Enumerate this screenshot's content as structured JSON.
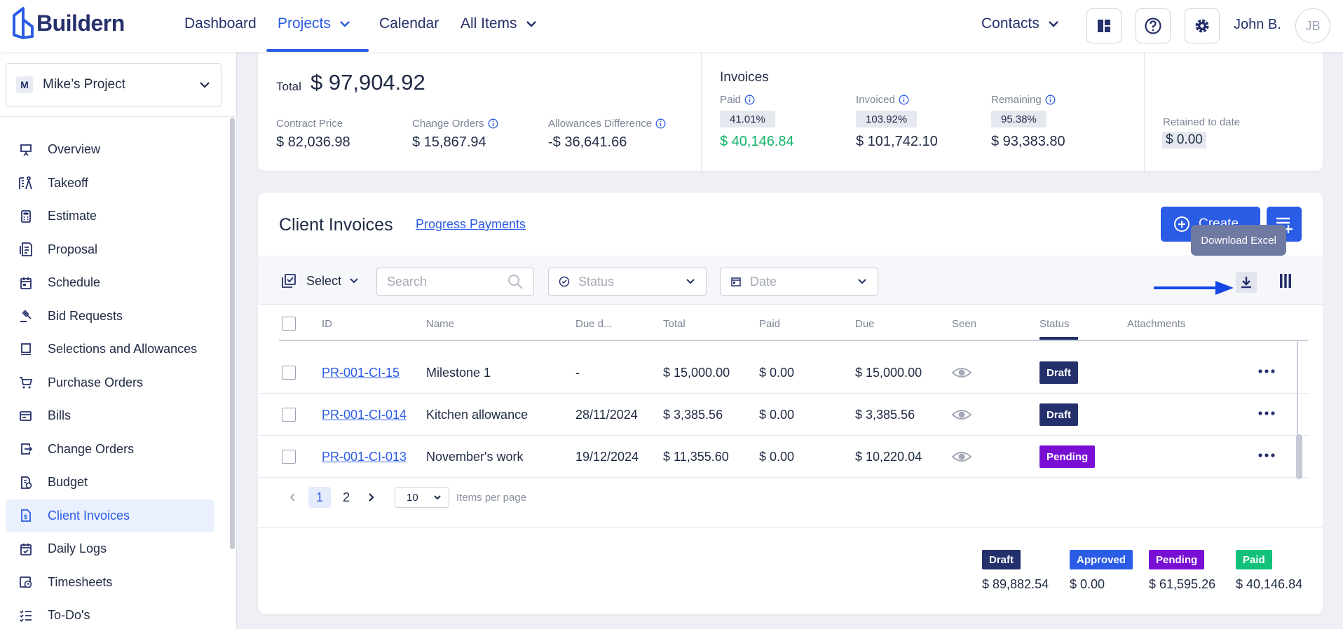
{
  "app": {
    "name": "Buildern"
  },
  "nav": {
    "dashboard": "Dashboard",
    "projects": "Projects",
    "calendar": "Calendar",
    "all_items": "All Items",
    "contacts": "Contacts",
    "user_name": "John B.",
    "user_initials": "JB"
  },
  "sidebar": {
    "project_badge": "M",
    "project_name": "Mike’s Project",
    "items": [
      {
        "label": "Overview",
        "icon": "presentation-icon"
      },
      {
        "label": "Takeoff",
        "icon": "takeoff-icon"
      },
      {
        "label": "Estimate",
        "icon": "calculator-icon"
      },
      {
        "label": "Proposal",
        "icon": "proposal-icon"
      },
      {
        "label": "Schedule",
        "icon": "calendar-icon"
      },
      {
        "label": "Bid Requests",
        "icon": "gavel-icon"
      },
      {
        "label": "Selections and Allowances",
        "icon": "selections-icon"
      },
      {
        "label": "Purchase Orders",
        "icon": "cart-icon"
      },
      {
        "label": "Bills",
        "icon": "bills-icon"
      },
      {
        "label": "Change Orders",
        "icon": "change-orders-icon"
      },
      {
        "label": "Budget",
        "icon": "budget-icon"
      },
      {
        "label": "Client Invoices",
        "icon": "invoice-icon"
      },
      {
        "label": "Daily Logs",
        "icon": "daily-logs-icon"
      },
      {
        "label": "Timesheets",
        "icon": "timesheets-icon"
      },
      {
        "label": "To-Do's",
        "icon": "todo-icon"
      }
    ],
    "active": "Client Invoices"
  },
  "summary": {
    "total_label": "Total",
    "total_value": "$ 97,904.92",
    "contract_price_label": "Contract Price",
    "contract_price_value": "$ 82,036.98",
    "change_orders_label": "Change Orders",
    "change_orders_value": "$ 15,867.94",
    "allowances_label": "Allowances Difference",
    "allowances_value": "-$ 36,641.66",
    "invoices_title": "Invoices",
    "paid_label": "Paid",
    "paid_pct": "41.01%",
    "paid_value": "$ 40,146.84",
    "invoiced_label": "Invoiced",
    "invoiced_pct": "103.92%",
    "invoiced_value": "$ 101,742.10",
    "remaining_label": "Remaining",
    "remaining_pct": "95.38%",
    "remaining_value": "$ 93,383.80",
    "retained_label": "Retained to date",
    "retained_value": "$ 0.00"
  },
  "main": {
    "title": "Client Invoices",
    "progress_link": "Progress Payments",
    "create_label": "Create",
    "tooltip": "Download Excel",
    "select_label": "Select",
    "search_placeholder": "Search",
    "status_placeholder": "Status",
    "date_placeholder": "Date"
  },
  "table": {
    "headers": [
      "ID",
      "Name",
      "Due d...",
      "Total",
      "Paid",
      "Due",
      "Seen",
      "Status",
      "Attachments"
    ],
    "rows": [
      {
        "id": "PR-001-CI-15",
        "name": "Milestone 1",
        "due_date": "-",
        "total": "$ 15,000.00",
        "paid": "$ 0.00",
        "due": "$ 15,000.00",
        "status": "Draft"
      },
      {
        "id": "PR-001-CI-014",
        "name": "Kitchen allowance",
        "due_date": "28/11/2024",
        "total": "$ 3,385.56",
        "paid": "$ 0.00",
        "due": "$ 3,385.56",
        "status": "Draft"
      },
      {
        "id": "PR-001-CI-013",
        "name": "November's work",
        "due_date": "19/12/2024",
        "total": "$ 11,355.60",
        "paid": "$ 0.00",
        "due": "$ 10,220.04",
        "status": "Pending"
      }
    ]
  },
  "pagination": {
    "pages": [
      "1",
      "2"
    ],
    "current": "1",
    "per_page": "10",
    "per_page_label": "Items per page"
  },
  "legend": [
    {
      "label": "Draft",
      "value": "$ 89,882.54",
      "color": "#24306b"
    },
    {
      "label": "Approved",
      "value": "$ 0.00",
      "color": "#2b5ce6"
    },
    {
      "label": "Pending",
      "value": "$ 61,595.26",
      "color": "#7a0fd4"
    },
    {
      "label": "Paid",
      "value": "$ 40,146.84",
      "color": "#12c27a"
    }
  ],
  "colors": {
    "accent": "#2b5ce6",
    "navy": "#26306b",
    "draft": "#24306b",
    "pending": "#7a0fd4",
    "paid_green": "#12b36a"
  }
}
